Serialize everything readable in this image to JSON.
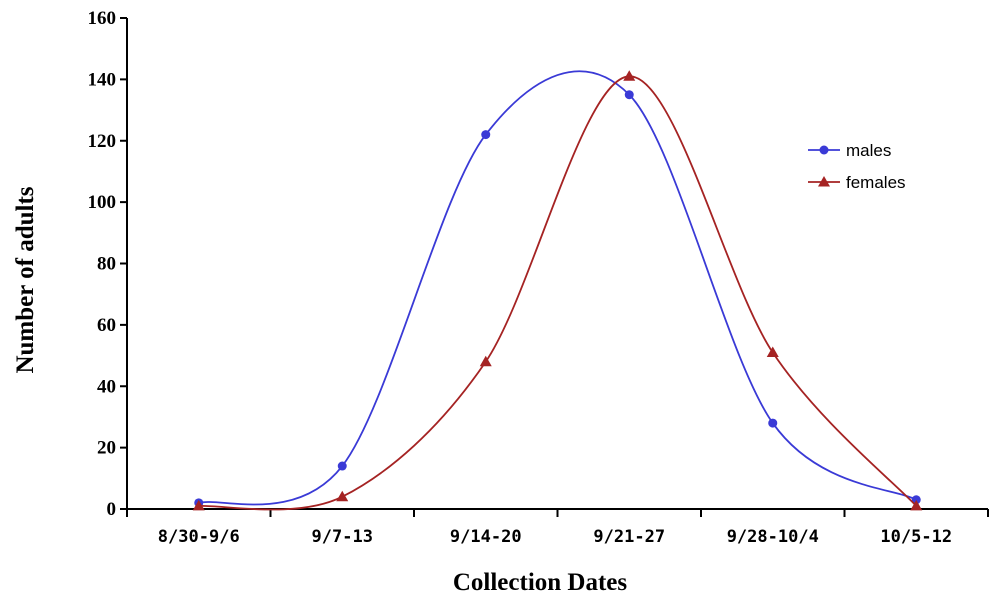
{
  "chart_data": {
    "type": "line",
    "title": "",
    "xlabel": "Collection Dates",
    "ylabel": "Number of adults",
    "categories": [
      "8/30-9/6",
      "9/7-13",
      "9/14-20",
      "9/21-27",
      "9/28-10/4",
      "10/5-12"
    ],
    "ylim": [
      0,
      160
    ],
    "yticks": [
      "0",
      "20",
      "40",
      "60",
      "80",
      "100",
      "120",
      "140",
      "160"
    ],
    "grid": false,
    "legend_position": "right",
    "series": [
      {
        "name": "males",
        "marker": "circle",
        "color": "#3a3ad6",
        "values": [
          2,
          14,
          122,
          135,
          28,
          3
        ]
      },
      {
        "name": "females",
        "marker": "triangle",
        "color": "#a52323",
        "values": [
          1,
          4,
          48,
          141,
          51,
          1
        ]
      }
    ]
  }
}
